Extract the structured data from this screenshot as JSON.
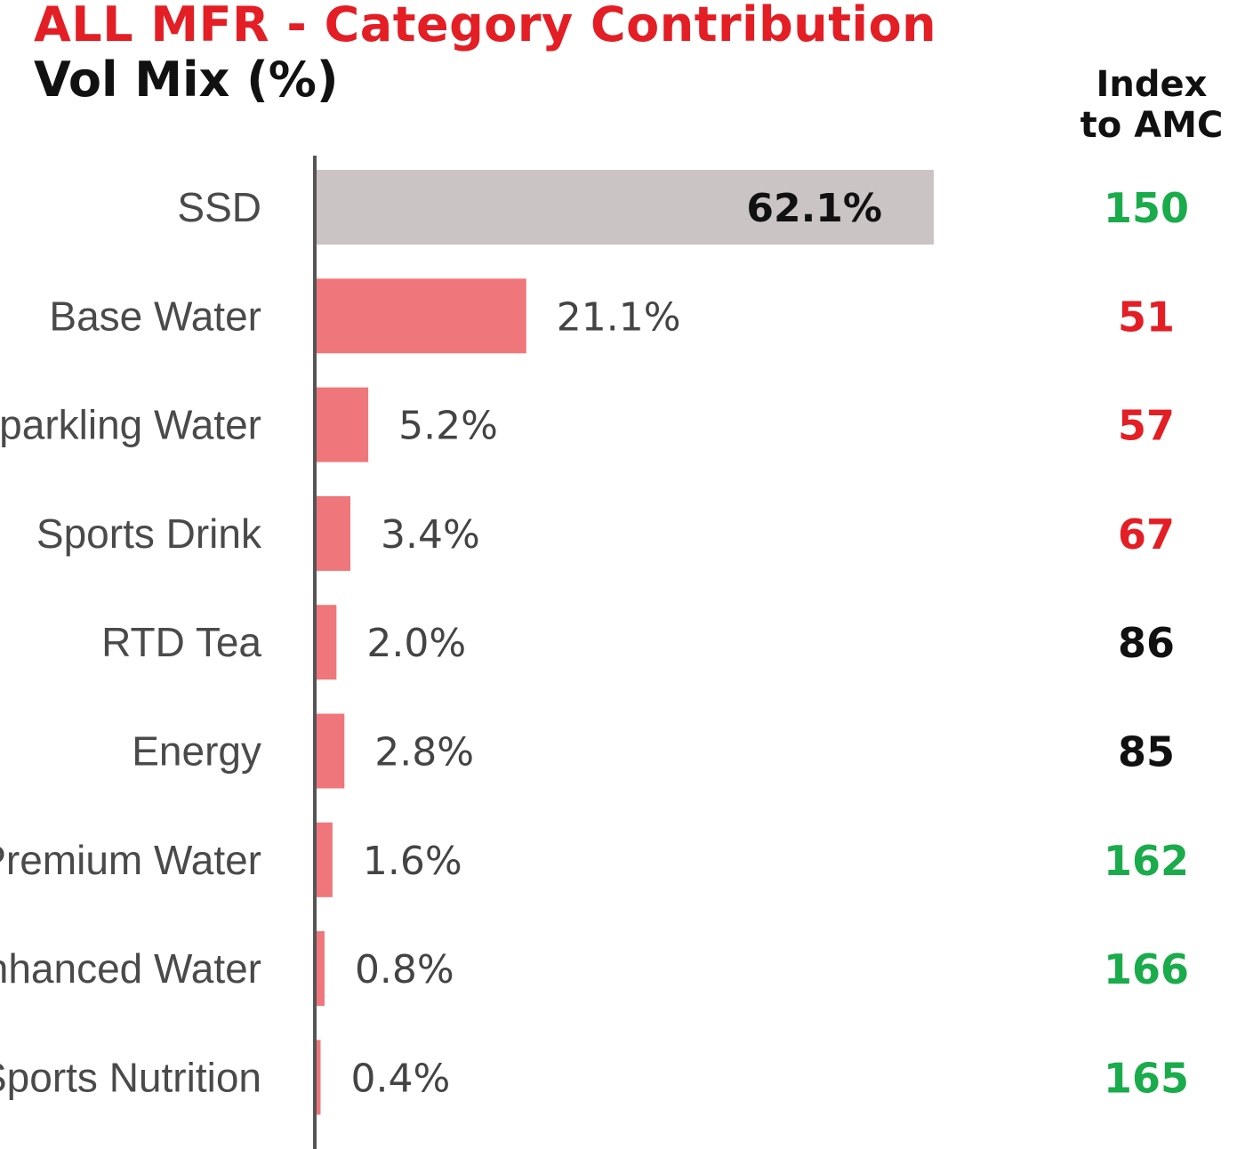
{
  "header": {
    "title": "ALL MFR - Category Contribution",
    "subtitle": "Vol Mix (%)",
    "index_header_line1": "Index",
    "index_header_line2": "to AMC"
  },
  "colors": {
    "title": "#e31e24",
    "highlight_bar": "#cbc4c4",
    "bar": "#ef777b",
    "axis": "#555555",
    "index_high": "#1aab4b",
    "index_low": "#e31e24",
    "index_neutral": "#111111"
  },
  "chart_data": {
    "type": "bar",
    "orientation": "horizontal",
    "title": "ALL MFR - Category Contribution",
    "subtitle": "Vol Mix (%)",
    "categories": [
      "SSD",
      "Base Water",
      "Sparkling Water",
      "Sports Drink",
      "RTD Tea",
      "Energy",
      "Premium Water",
      "Enhanced Water",
      "Sports Nutrition"
    ],
    "values": [
      62.1,
      21.1,
      5.2,
      3.4,
      2.0,
      2.8,
      1.6,
      0.8,
      0.4
    ],
    "value_labels": [
      "62.1%",
      "21.1%",
      "5.2%",
      "3.4%",
      "2.0%",
      "2.8%",
      "1.6%",
      "0.8%",
      "0.4%"
    ],
    "index_to_amc": {
      "header": "Index to AMC",
      "values": [
        150,
        51,
        57,
        67,
        86,
        85,
        162,
        166,
        165
      ],
      "status": [
        "high",
        "low",
        "low",
        "low",
        "neutral",
        "neutral",
        "high",
        "high",
        "high"
      ]
    },
    "highlighted_category": "SSD",
    "xlim": [
      0,
      62.1
    ],
    "grid": false,
    "legend": "none"
  }
}
